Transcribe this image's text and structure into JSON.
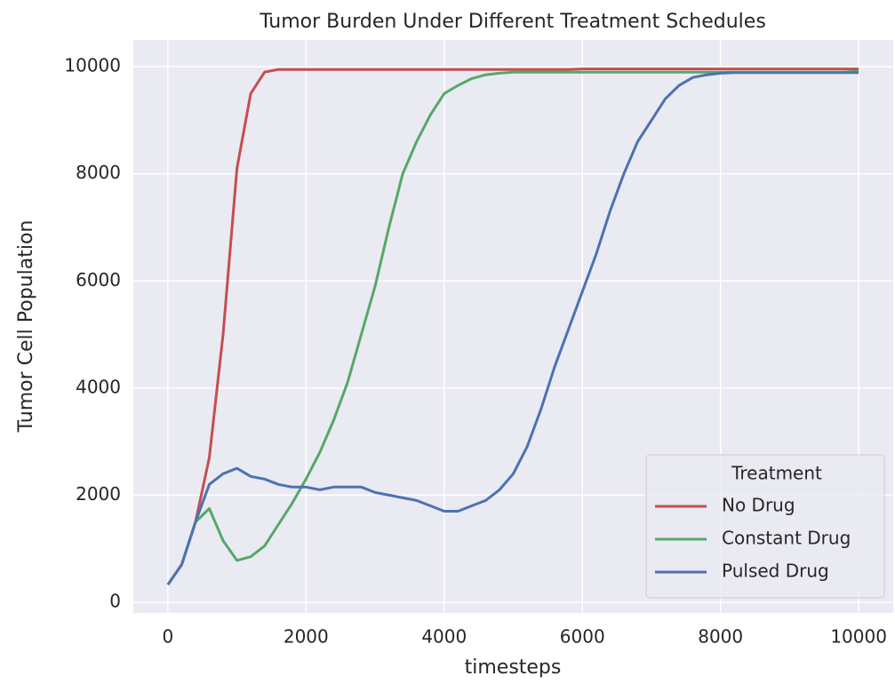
{
  "chart_data": {
    "type": "line",
    "title": "Tumor Burden Under Different Treatment Schedules",
    "x_label": "timesteps",
    "y_label": "Tumor Cell Population",
    "legend_title": "Treatment",
    "legend_position": "lower right",
    "grid": true,
    "xlim": [
      -500,
      10500
    ],
    "ylim": [
      -200,
      10500
    ],
    "xticks": [
      0,
      2000,
      4000,
      6000,
      8000,
      10000
    ],
    "yticks": [
      0,
      2000,
      4000,
      6000,
      8000,
      10000
    ],
    "x": [
      0,
      200,
      400,
      600,
      800,
      1000,
      1200,
      1400,
      1600,
      1800,
      2000,
      2200,
      2400,
      2600,
      2800,
      3000,
      3200,
      3400,
      3600,
      3800,
      4000,
      4200,
      4400,
      4600,
      4800,
      5000,
      5200,
      5400,
      5600,
      5800,
      6000,
      6200,
      6400,
      6600,
      6800,
      7000,
      7200,
      7400,
      7600,
      7800,
      8000,
      8200,
      8400,
      8600,
      8800,
      9000,
      9200,
      9400,
      9600,
      9800,
      10000
    ],
    "series": [
      {
        "name": "No Drug",
        "color": "#c44e52",
        "values": [
          330,
          700,
          1500,
          2700,
          5000,
          8100,
          9500,
          9900,
          9950,
          9950,
          9950,
          9950,
          9950,
          9950,
          9950,
          9950,
          9950,
          9950,
          9950,
          9950,
          9950,
          9950,
          9950,
          9950,
          9950,
          9950,
          9950,
          9950,
          9950,
          9950,
          9960,
          9960,
          9960,
          9960,
          9960,
          9960,
          9960,
          9960,
          9960,
          9960,
          9960,
          9960,
          9960,
          9960,
          9960,
          9960,
          9960,
          9960,
          9960,
          9960,
          9960
        ]
      },
      {
        "name": "Constant Drug",
        "color": "#55a868",
        "values": [
          330,
          700,
          1500,
          1750,
          1150,
          780,
          850,
          1050,
          1450,
          1850,
          2300,
          2800,
          3400,
          4100,
          5000,
          5900,
          7000,
          8000,
          8600,
          9100,
          9500,
          9650,
          9780,
          9850,
          9880,
          9900,
          9900,
          9900,
          9900,
          9900,
          9900,
          9900,
          9900,
          9900,
          9900,
          9900,
          9900,
          9900,
          9900,
          9900,
          9900,
          9900,
          9900,
          9900,
          9900,
          9900,
          9900,
          9900,
          9900,
          9900,
          9920
        ]
      },
      {
        "name": "Pulsed Drug",
        "color": "#4c72b0",
        "values": [
          330,
          700,
          1500,
          2200,
          2400,
          2500,
          2350,
          2300,
          2200,
          2150,
          2150,
          2100,
          2150,
          2150,
          2150,
          2050,
          2000,
          1950,
          1900,
          1800,
          1700,
          1700,
          1800,
          1900,
          2100,
          2400,
          2900,
          3600,
          4400,
          5100,
          5800,
          6500,
          7300,
          8000,
          8600,
          9000,
          9400,
          9650,
          9800,
          9850,
          9880,
          9890,
          9890,
          9890,
          9890,
          9890,
          9890,
          9890,
          9890,
          9890,
          9890
        ]
      }
    ]
  }
}
